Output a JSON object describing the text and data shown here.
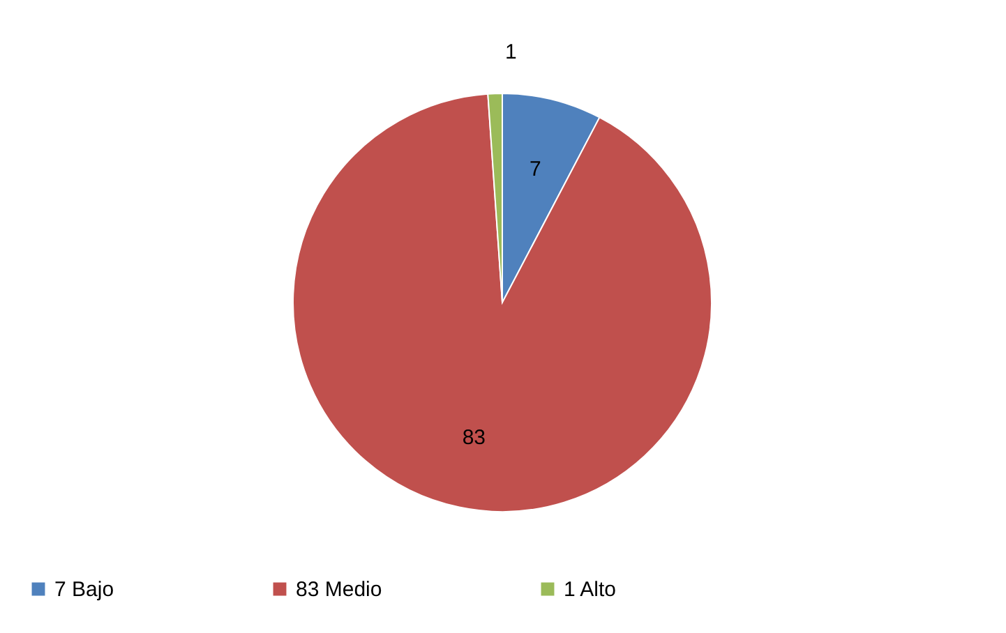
{
  "chart_data": {
    "type": "pie",
    "categories": [
      "7 Bajo",
      "83 Medio",
      "1 Alto"
    ],
    "values": [
      7,
      83,
      1
    ],
    "colors": [
      "#4f81bd",
      "#c0504d",
      "#9bbb59"
    ],
    "data_labels": true,
    "legend": "bottom"
  }
}
